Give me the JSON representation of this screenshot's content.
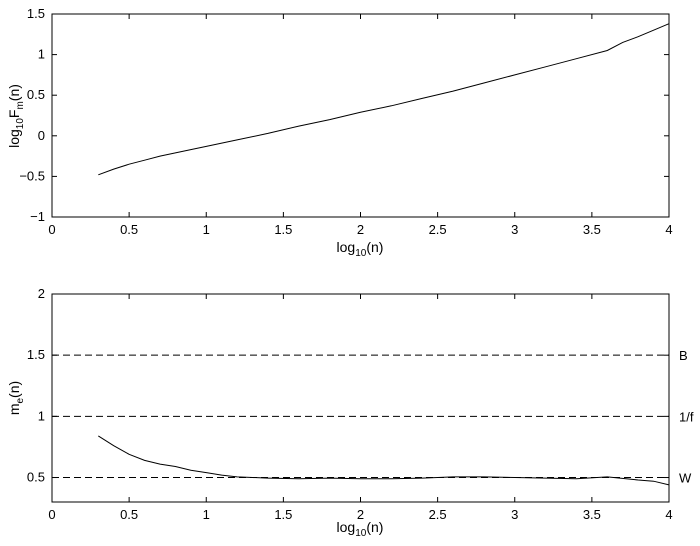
{
  "chart_data": [
    {
      "type": "line",
      "xlabel": {
        "base": "log",
        "sub": "10",
        "rest": "(n)"
      },
      "ylabel": {
        "pre": "log",
        "sub1": "10",
        "mid": "F",
        "sub2": "m",
        "rest": "(n)"
      },
      "xlim": [
        0,
        4
      ],
      "ylim": [
        -1,
        1.5
      ],
      "xticks": [
        0,
        0.5,
        1,
        1.5,
        2,
        2.5,
        3,
        3.5,
        4
      ],
      "xtick_labels": [
        "0",
        "0.5",
        "1",
        "1.5",
        "2",
        "2.5",
        "3",
        "3.5",
        "4"
      ],
      "yticks": [
        -1,
        -0.5,
        0,
        0.5,
        1,
        1.5
      ],
      "ytick_labels": [
        "−1",
        "−0.5",
        "0",
        "0.5",
        "1",
        "1.5"
      ],
      "series": [
        {
          "x": [
            0.3,
            0.4,
            0.5,
            0.6,
            0.7,
            0.8,
            0.9,
            1.0,
            1.2,
            1.4,
            1.6,
            1.8,
            2.0,
            2.2,
            2.4,
            2.6,
            2.8,
            3.0,
            3.2,
            3.4,
            3.6,
            3.7,
            3.8,
            3.9,
            4.0
          ],
          "y": [
            -0.48,
            -0.41,
            -0.35,
            -0.3,
            -0.25,
            -0.21,
            -0.17,
            -0.13,
            -0.05,
            0.03,
            0.12,
            0.2,
            0.29,
            0.37,
            0.46,
            0.55,
            0.65,
            0.75,
            0.85,
            0.95,
            1.05,
            1.15,
            1.22,
            1.3,
            1.38
          ],
          "color": "#000000"
        }
      ]
    },
    {
      "type": "line",
      "xlabel": {
        "base": "log",
        "sub": "10",
        "rest": "(n)"
      },
      "ylabel": {
        "pre": "m",
        "sub1": "e",
        "rest": "(n)"
      },
      "xlim": [
        0,
        4
      ],
      "ylim": [
        0.3,
        2
      ],
      "xticks": [
        0,
        0.5,
        1,
        1.5,
        2,
        2.5,
        3,
        3.5,
        4
      ],
      "xtick_labels": [
        "0",
        "0.5",
        "1",
        "1.5",
        "2",
        "2.5",
        "3",
        "3.5",
        "4"
      ],
      "yticks": [
        0.5,
        1,
        1.5,
        2
      ],
      "ytick_labels": [
        "0.5",
        "1",
        "1.5",
        "2"
      ],
      "series": [
        {
          "x": [
            0.3,
            0.4,
            0.5,
            0.6,
            0.7,
            0.8,
            0.9,
            1.0,
            1.1,
            1.2,
            1.3,
            1.4,
            1.6,
            1.8,
            2.0,
            2.2,
            2.4,
            2.6,
            2.8,
            3.0,
            3.2,
            3.4,
            3.6,
            3.8,
            3.9,
            4.0
          ],
          "y": [
            0.84,
            0.76,
            0.69,
            0.64,
            0.61,
            0.59,
            0.56,
            0.54,
            0.52,
            0.505,
            0.5,
            0.495,
            0.49,
            0.495,
            0.49,
            0.49,
            0.495,
            0.505,
            0.505,
            0.5,
            0.495,
            0.49,
            0.505,
            0.48,
            0.47,
            0.44
          ],
          "color": "#000000"
        }
      ],
      "reference_lines": [
        {
          "y": 1.5,
          "label": "B",
          "style": "dashed"
        },
        {
          "y": 1,
          "label": "1/f",
          "style": "dashed"
        },
        {
          "y": 0.5,
          "label": "W",
          "style": "dashed"
        }
      ]
    }
  ]
}
